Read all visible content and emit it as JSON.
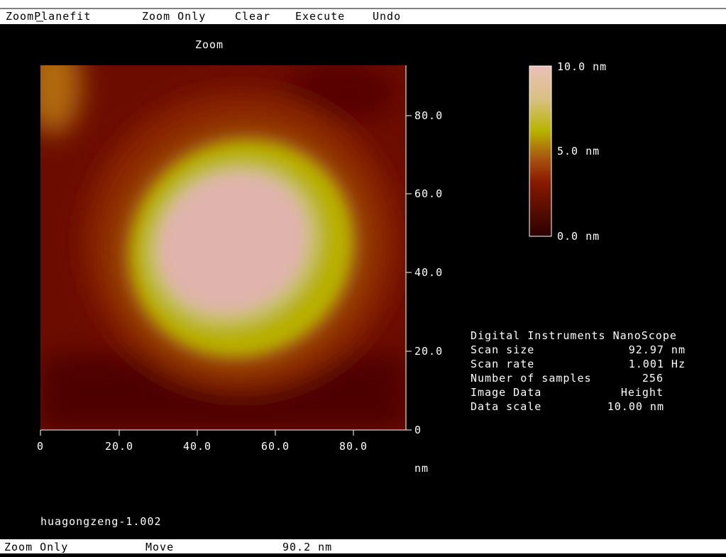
{
  "menu": {
    "items": [
      "ZoomPlanefit",
      "Zoom Only",
      "Clear",
      "Execute",
      "Undo"
    ]
  },
  "panel": {
    "title": "Zoom",
    "y_axis": {
      "ticks": [
        "80.0",
        "60.0",
        "40.0",
        "20.0",
        "0"
      ]
    },
    "x_axis": {
      "ticks": [
        "0",
        "20.0",
        "40.0",
        "60.0",
        "80.0"
      ],
      "unit": "nm"
    },
    "colorbar": {
      "labels": [
        "10.0 nm",
        "5.0 nm",
        "0.0 nm"
      ]
    },
    "filename": "huagongzeng-1.002"
  },
  "info": {
    "header": "Digital Instruments NanoScope",
    "rows": [
      [
        "Scan size",
        "92.97 nm"
      ],
      [
        "Scan rate",
        "1.001 Hz"
      ],
      [
        "Number of samples",
        "256"
      ],
      [
        "Image Data",
        "Height"
      ],
      [
        "Data scale",
        "10.00 nm"
      ]
    ]
  },
  "status": {
    "items": [
      "Zoom Only",
      "Move",
      "90.2 nm"
    ]
  }
}
